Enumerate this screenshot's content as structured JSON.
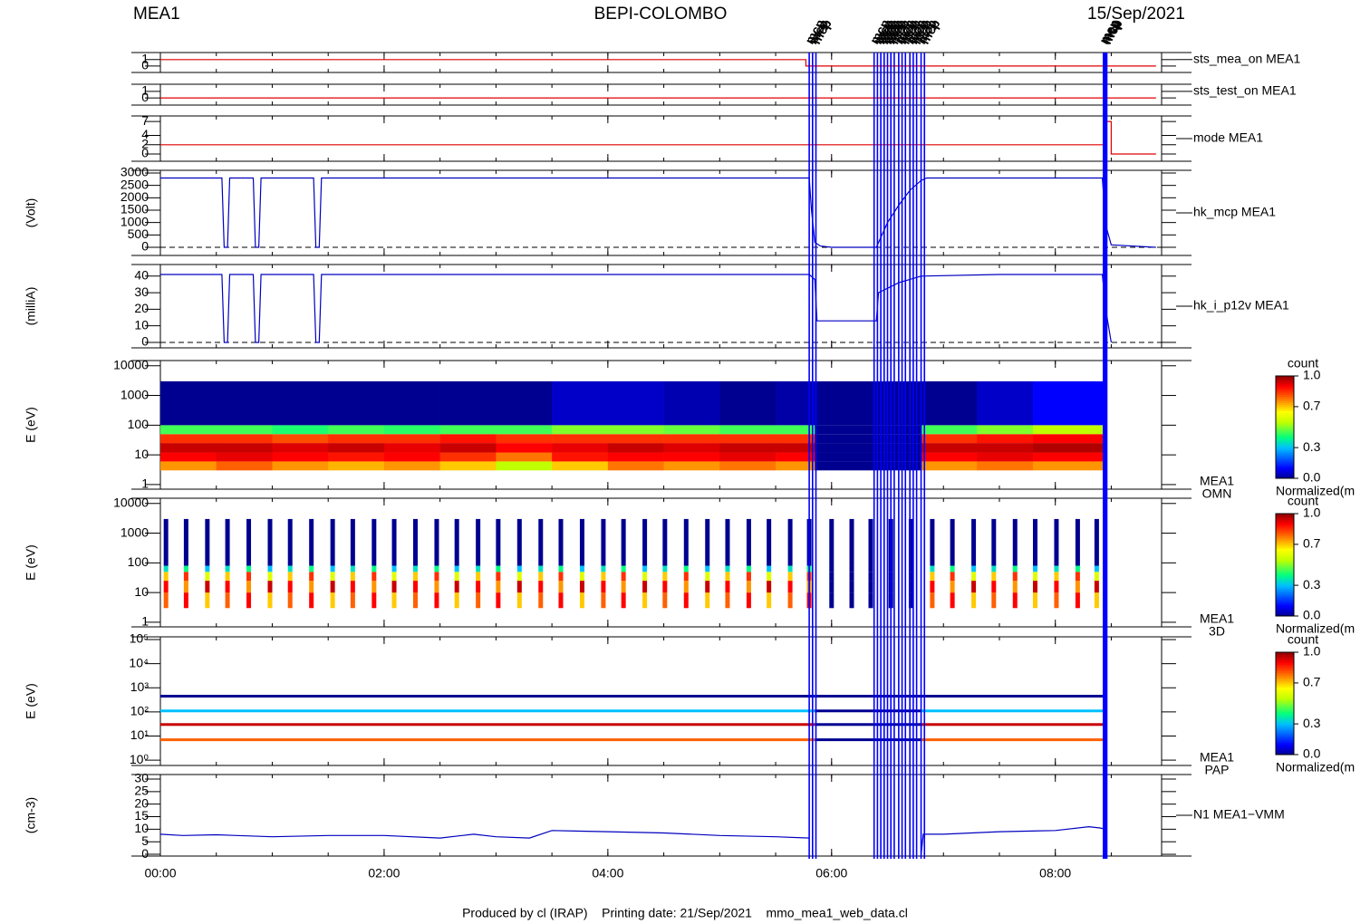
{
  "header": {
    "left": "MEA1",
    "title": "BEPI-COLOMBO",
    "date": "15/Sep/2021"
  },
  "footer": "Produced by cl (IRAP)    Printing date: 21/Sep/2021    mmo_mea1_web_data.cl",
  "time_axis": {
    "xlim": [
      0,
      8.95
    ],
    "minor_step": 0.5,
    "xticks": [
      {
        "value": 0,
        "label": "00:00"
      },
      {
        "value": 2,
        "label": "02:00"
      },
      {
        "value": 4,
        "label": "04:00"
      },
      {
        "value": 6,
        "label": "06:00"
      },
      {
        "value": 8,
        "label": "08:00"
      }
    ]
  },
  "markers": {
    "label": "mcp",
    "color": "#0000ff",
    "x": [
      5.8,
      5.83,
      5.86,
      6.38,
      6.41,
      6.44,
      6.47,
      6.5,
      6.53,
      6.56,
      6.6,
      6.63,
      6.66,
      6.7,
      6.73,
      6.76,
      6.8,
      6.83,
      8.43,
      8.44,
      8.45,
      8.46
    ]
  },
  "chart_data": [
    {
      "type": "line",
      "label": "sts_mea_on MEA1",
      "ylim": [
        -1,
        2.1
      ],
      "yticks": [
        0,
        1
      ],
      "color": "#e00000",
      "x": [
        0,
        5.77,
        5.77,
        8.9
      ],
      "values": [
        1,
        1,
        0,
        0
      ]
    },
    {
      "type": "line",
      "label": "sts_test_on MEA1",
      "ylim": [
        -1.1,
        2.1
      ],
      "yticks": [
        0,
        1
      ],
      "color": "#e00000",
      "x": [
        0,
        8.9
      ],
      "values": [
        0,
        0
      ]
    },
    {
      "type": "line",
      "label": "mode MEA1",
      "ylim": [
        -1.56,
        8.2
      ],
      "yticks": [
        0,
        2,
        4,
        7
      ],
      "color": "#e00000",
      "x": [
        0,
        8.45,
        8.45,
        8.5,
        8.5,
        8.9
      ],
      "values": [
        2,
        2,
        7,
        7,
        0,
        0
      ]
    },
    {
      "type": "line",
      "label": "hk_mcp MEA1",
      "ylabel": "(Volt)",
      "ylim": [
        -330,
        3110
      ],
      "yticks": [
        0,
        500,
        1000,
        1500,
        2000,
        2500,
        3000
      ],
      "color": "#0000c0",
      "baseline": 0,
      "x": [
        0,
        0.55,
        0.57,
        0.6,
        0.62,
        0.83,
        0.85,
        0.88,
        0.9,
        1.37,
        1.39,
        1.42,
        1.44,
        5.8,
        5.82,
        5.85,
        5.9,
        6.0,
        6.4,
        6.5,
        6.6,
        6.7,
        6.8,
        6.85,
        8.42,
        8.45,
        8.5,
        8.9
      ],
      "values": [
        2800,
        2800,
        0,
        0,
        2800,
        2800,
        0,
        0,
        2800,
        2800,
        0,
        0,
        2800,
        2800,
        1500,
        200,
        50,
        0,
        0,
        1000,
        1700,
        2300,
        2700,
        2800,
        2800,
        900,
        100,
        0
      ]
    },
    {
      "type": "line",
      "label": "hk_i_p12v MEA1",
      "ylabel": "(milliA)",
      "ylim": [
        -3.3,
        47
      ],
      "yticks": [
        0,
        10,
        20,
        30,
        40
      ],
      "color": "#0000c0",
      "baseline": 0,
      "x": [
        0,
        0.55,
        0.57,
        0.6,
        0.62,
        0.83,
        0.85,
        0.88,
        0.9,
        1.37,
        1.39,
        1.42,
        1.44,
        2.5,
        4.0,
        5.8,
        5.85,
        5.87,
        6.4,
        6.42,
        6.6,
        6.8,
        7.5,
        8.42,
        8.45,
        8.5
      ],
      "values": [
        41,
        41,
        0,
        0,
        41,
        41,
        0,
        0,
        41,
        41,
        0,
        0,
        41,
        41,
        41,
        41,
        38,
        13,
        13,
        30,
        36,
        40,
        41,
        41,
        20,
        0
      ]
    },
    {
      "type": "spectrogram",
      "label": [
        "MEA1",
        "OMN"
      ],
      "ylabel": "E (eV)",
      "log": true,
      "ylim": [
        0.7,
        15000
      ],
      "yticks": [
        1,
        10,
        100,
        1000,
        10000
      ],
      "bins": [
        0,
        0.5,
        1,
        1.5,
        2,
        2.5,
        3,
        3.5,
        4,
        4.5,
        5,
        5.5,
        5.85,
        6.8,
        7.3,
        7.8,
        8.45
      ],
      "energy_bins": [
        3,
        6,
        12,
        25,
        50,
        100,
        3000
      ],
      "z": [
        [
          0.75,
          0.9,
          0.95,
          0.85,
          0.45,
          0
        ],
        [
          0.8,
          0.92,
          0.95,
          0.85,
          0.45,
          0
        ],
        [
          0.75,
          0.9,
          0.93,
          0.82,
          0.42,
          0
        ],
        [
          0.72,
          0.88,
          0.95,
          0.85,
          0.45,
          0
        ],
        [
          0.75,
          0.9,
          0.92,
          0.85,
          0.43,
          0
        ],
        [
          0.7,
          0.85,
          0.95,
          0.88,
          0.45,
          0
        ],
        [
          0.55,
          0.78,
          0.9,
          0.85,
          0.45,
          0
        ],
        [
          0.7,
          0.88,
          0.92,
          0.85,
          0.5,
          0.05
        ],
        [
          0.78,
          0.9,
          0.95,
          0.85,
          0.5,
          0.05
        ],
        [
          0.75,
          0.9,
          0.93,
          0.85,
          0.48,
          0.03
        ],
        [
          0.78,
          0.92,
          0.95,
          0.85,
          0.45,
          0
        ],
        [
          0.75,
          0.9,
          0.95,
          0.85,
          0.45,
          0.02
        ],
        [
          0,
          0,
          0,
          0,
          0,
          0
        ],
        [
          0.75,
          0.9,
          0.95,
          0.85,
          0.45,
          0
        ],
        [
          0.78,
          0.92,
          0.95,
          0.88,
          0.5,
          0.05
        ],
        [
          0.75,
          0.9,
          0.97,
          0.9,
          0.55,
          0.1
        ]
      ],
      "colorbar": {
        "title": "count",
        "label": "Normalized(m",
        "ticks": [
          {
            "value": 0,
            "label": "0.0"
          },
          {
            "value": 0.3,
            "label": "0.3"
          },
          {
            "value": 0.7,
            "label": "0.7"
          },
          {
            "value": 1,
            "label": "1.0"
          }
        ]
      }
    },
    {
      "type": "bars3d",
      "label": [
        "MEA1",
        "3D"
      ],
      "ylabel": "E (eV)",
      "log": true,
      "ylim": [
        0.7,
        15000
      ],
      "yticks": [
        1,
        10,
        100,
        1000,
        10000
      ],
      "times": [
        0.05,
        0.23,
        0.42,
        0.6,
        0.79,
        0.98,
        1.16,
        1.35,
        1.54,
        1.72,
        1.91,
        2.09,
        2.28,
        2.47,
        2.65,
        2.84,
        3.02,
        3.21,
        3.4,
        3.58,
        3.77,
        3.96,
        4.14,
        4.33,
        4.51,
        4.7,
        4.89,
        5.07,
        5.26,
        5.44,
        5.63,
        5.8,
        6.0,
        6.18,
        6.35,
        6.53,
        6.71,
        6.9,
        7.08,
        7.27,
        7.45,
        7.64,
        7.82,
        8.01,
        8.2,
        8.37
      ],
      "energy_bins": [
        3,
        10,
        25,
        50,
        80,
        3000
      ],
      "z": [
        [
          0.8,
          0.9,
          0.7,
          0.35,
          0
        ],
        [
          0.9,
          0.75,
          0.85,
          0.4,
          0
        ],
        [
          0.7,
          0.95,
          0.6,
          0.3,
          0
        ],
        [
          0.8,
          0.9,
          0.7,
          0.35,
          0
        ],
        [
          0.9,
          0.75,
          0.85,
          0.4,
          0
        ],
        [
          0.7,
          0.95,
          0.6,
          0.3,
          0
        ],
        [
          0.8,
          0.9,
          0.7,
          0.35,
          0
        ],
        [
          0.9,
          0.75,
          0.85,
          0.4,
          0
        ],
        [
          0.7,
          0.95,
          0.6,
          0.3,
          0
        ],
        [
          0.8,
          0.9,
          0.7,
          0.35,
          0
        ],
        [
          0.9,
          0.75,
          0.85,
          0.4,
          0
        ],
        [
          0.7,
          0.95,
          0.6,
          0.3,
          0
        ],
        [
          0.8,
          0.9,
          0.7,
          0.35,
          0
        ],
        [
          0.9,
          0.75,
          0.85,
          0.4,
          0
        ],
        [
          0.7,
          0.95,
          0.6,
          0.3,
          0
        ],
        [
          0.8,
          0.9,
          0.7,
          0.35,
          0
        ],
        [
          0.9,
          0.75,
          0.85,
          0.4,
          0
        ],
        [
          0.7,
          0.95,
          0.6,
          0.3,
          0
        ],
        [
          0.8,
          0.9,
          0.7,
          0.35,
          0
        ],
        [
          0.9,
          0.75,
          0.85,
          0.4,
          0
        ],
        [
          0.7,
          0.95,
          0.6,
          0.3,
          0
        ],
        [
          0.8,
          0.9,
          0.7,
          0.35,
          0
        ],
        [
          0.9,
          0.75,
          0.85,
          0.4,
          0
        ],
        [
          0.7,
          0.95,
          0.6,
          0.3,
          0
        ],
        [
          0.8,
          0.9,
          0.7,
          0.35,
          0
        ],
        [
          0.9,
          0.75,
          0.85,
          0.4,
          0
        ],
        [
          0.7,
          0.95,
          0.6,
          0.3,
          0
        ],
        [
          0.8,
          0.9,
          0.7,
          0.35,
          0
        ],
        [
          0.9,
          0.75,
          0.85,
          0.4,
          0
        ],
        [
          0.7,
          0.95,
          0.6,
          0.3,
          0
        ],
        [
          0.8,
          0.9,
          0.7,
          0.35,
          0
        ],
        [
          0.9,
          0.75,
          0.85,
          0.4,
          0
        ],
        [
          0,
          0,
          0,
          0,
          0
        ],
        [
          0,
          0,
          0,
          0,
          0
        ],
        [
          0,
          0,
          0,
          0,
          0
        ],
        [
          0,
          0,
          0,
          0,
          0
        ],
        [
          0,
          0,
          0,
          0,
          0
        ],
        [
          0.8,
          0.9,
          0.7,
          0.35,
          0
        ],
        [
          0.9,
          0.75,
          0.85,
          0.4,
          0
        ],
        [
          0.7,
          0.95,
          0.6,
          0.3,
          0
        ],
        [
          0.8,
          0.9,
          0.7,
          0.35,
          0
        ],
        [
          0.9,
          0.75,
          0.85,
          0.4,
          0
        ],
        [
          0.7,
          0.95,
          0.6,
          0.3,
          0
        ],
        [
          0.8,
          0.9,
          0.7,
          0.35,
          0
        ],
        [
          0.9,
          0.75,
          0.85,
          0.4,
          0
        ],
        [
          0.7,
          0.95,
          0.6,
          0.3,
          0
        ]
      ],
      "colorbar": {
        "title": "count",
        "label": "Normalized(m",
        "ticks": [
          {
            "value": 0,
            "label": "0.0"
          },
          {
            "value": 0.3,
            "label": "0.3"
          },
          {
            "value": 0.7,
            "label": "0.7"
          },
          {
            "value": 1,
            "label": "1.0"
          }
        ]
      }
    },
    {
      "type": "pap",
      "label": [
        "MEA1",
        "PAP"
      ],
      "ylabel": "E (eV)",
      "log": true,
      "ylim": [
        0.6,
        130000
      ],
      "yticks": [
        {
          "value": 1,
          "label": "10⁰"
        },
        {
          "value": 10,
          "label": "10¹"
        },
        {
          "value": 100,
          "label": "10²"
        },
        {
          "value": 1000,
          "label": "10³"
        },
        {
          "value": 10000,
          "label": "10⁴"
        },
        {
          "value": 100000,
          "label": "10⁵"
        }
      ],
      "segments": [
        0,
        5.85,
        6.8,
        8.45
      ],
      "energies": [
        7,
        30,
        110,
        450
      ],
      "z": [
        [
          0.8,
          0,
          0.8
        ],
        [
          0.95,
          0,
          0.95
        ],
        [
          0.3,
          0,
          0.3
        ],
        [
          0,
          0,
          0
        ]
      ],
      "colorbar": {
        "title": "count",
        "label": "Normalized(m",
        "ticks": [
          {
            "value": 0,
            "label": "0.0"
          },
          {
            "value": 0.3,
            "label": "0.3"
          },
          {
            "value": 0.7,
            "label": "0.7"
          },
          {
            "value": 1,
            "label": "1.0"
          }
        ]
      }
    },
    {
      "type": "line",
      "label": "N1 MEA1−VMM",
      "ylabel": "(cm-3)",
      "ylim": [
        -0.7,
        31.8
      ],
      "yticks": [
        0,
        5,
        10,
        15,
        20,
        25,
        30
      ],
      "color": "#0000c0",
      "x": [
        0,
        0.2,
        0.5,
        1.0,
        1.5,
        2.0,
        2.5,
        2.8,
        3.0,
        3.3,
        3.5,
        4.0,
        4.5,
        5.0,
        5.5,
        5.8,
        5.83,
        6.8,
        6.82,
        7.0,
        7.5,
        8.0,
        8.3,
        8.4,
        8.45
      ],
      "values": [
        8,
        7.5,
        7.8,
        7,
        7.5,
        7.5,
        6.5,
        8,
        7,
        6.5,
        9.5,
        9,
        8.5,
        7.5,
        7,
        6.5,
        null,
        0,
        8,
        8,
        9,
        9.5,
        11,
        10.5,
        10
      ]
    }
  ]
}
